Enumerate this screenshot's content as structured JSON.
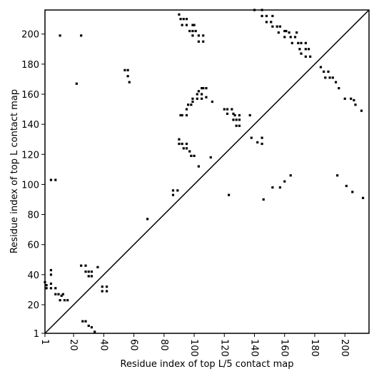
{
  "chart_data": {
    "type": "scatter",
    "xlabel": "Residue index of top L/5 contact map",
    "ylabel": "Residue index of top L contact map",
    "xlim": [
      1,
      216
    ],
    "ylim": [
      1,
      216
    ],
    "xticks": [
      1,
      20,
      40,
      60,
      80,
      100,
      120,
      140,
      160,
      180,
      200
    ],
    "yticks": [
      1,
      20,
      40,
      60,
      80,
      100,
      120,
      140,
      160,
      180,
      200
    ],
    "color": "#000000",
    "grid": false,
    "x": [
      11,
      25,
      22,
      54,
      56,
      56,
      57,
      5,
      8,
      86,
      89,
      86,
      69,
      90,
      91,
      93,
      95,
      92,
      95,
      99,
      100,
      97,
      99,
      101,
      99,
      103,
      106,
      103,
      106,
      91,
      92,
      95,
      95,
      96,
      98,
      99,
      99,
      102,
      102,
      103,
      105,
      106,
      105,
      105,
      108,
      108,
      112,
      90,
      90,
      92,
      93,
      95,
      95,
      97,
      98,
      100,
      103,
      111,
      120,
      122,
      122,
      125,
      126,
      127,
      126,
      128,
      128,
      130,
      130,
      130,
      137,
      138,
      142,
      145,
      145,
      123,
      146,
      140,
      145,
      145,
      148,
      152,
      148,
      151,
      152,
      155,
      157,
      156,
      160,
      161,
      160,
      163,
      164,
      165,
      167,
      168,
      169,
      171,
      174,
      170,
      174,
      176,
      171,
      174,
      177,
      184,
      186,
      189,
      187,
      190,
      192,
      194,
      196,
      200,
      204,
      206,
      207,
      211,
      152,
      157,
      160,
      164,
      195,
      201,
      205,
      212,
      1,
      2,
      2,
      5,
      5,
      5,
      5,
      8,
      8,
      10,
      11,
      12,
      13,
      14,
      16,
      25,
      28,
      28,
      30,
      30,
      32,
      32,
      36,
      39,
      42,
      39,
      42,
      26,
      28,
      30,
      32,
      34
    ],
    "y": [
      199,
      199,
      167,
      176,
      176,
      172,
      168,
      103,
      103,
      96,
      96,
      93,
      77,
      213,
      210,
      210,
      210,
      206,
      206,
      206,
      206,
      202,
      202,
      202,
      199,
      199,
      199,
      195,
      195,
      146,
      146,
      146,
      150,
      153,
      153,
      155,
      157,
      157,
      160,
      162,
      164,
      164,
      160,
      157,
      164,
      158,
      155,
      130,
      127,
      127,
      124,
      124,
      127,
      122,
      119,
      119,
      112,
      118,
      150,
      150,
      147,
      150,
      147,
      146,
      143,
      143,
      139,
      139,
      143,
      146,
      146,
      131,
      128,
      127,
      131,
      93,
      90,
      216,
      216,
      212,
      212,
      212,
      208,
      208,
      205,
      205,
      205,
      201,
      202,
      202,
      198,
      201,
      198,
      194,
      198,
      201,
      194,
      194,
      194,
      190,
      190,
      190,
      187,
      185,
      185,
      178,
      175,
      175,
      171,
      171,
      171,
      168,
      164,
      157,
      157,
      156,
      153,
      149,
      98,
      98,
      102,
      106,
      106,
      99,
      95,
      91,
      35,
      33,
      31,
      31,
      34,
      43,
      40,
      31,
      27,
      27,
      23,
      26,
      27,
      23,
      23,
      46,
      46,
      42,
      42,
      39,
      39,
      42,
      45,
      32,
      32,
      29,
      29,
      9,
      9,
      6,
      5,
      2
    ]
  }
}
